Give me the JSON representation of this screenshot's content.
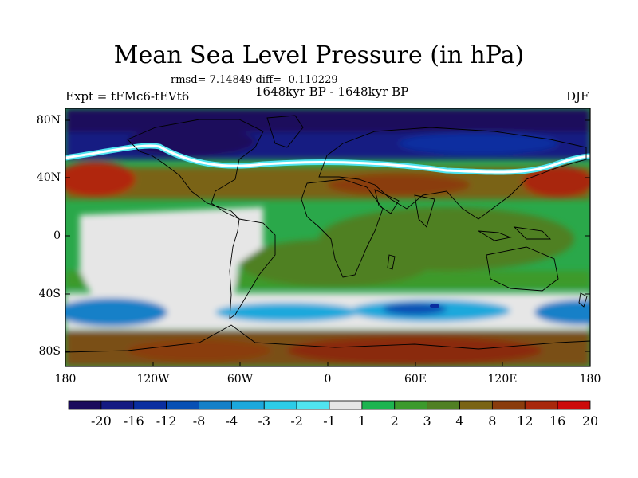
{
  "title": "Mean Sea Level Pressure (in hPa)",
  "stats": "rmsd= 7.14849 diff= -0.110229",
  "expt": "Expt = tFMc6-tEVt6",
  "period": "1648kyr BP - 1648kyr BP",
  "season": "DJF",
  "lat_labels": [
    "80N",
    "40N",
    "0",
    "40S",
    "80S"
  ],
  "lon_labels": [
    "180",
    "120W",
    "60W",
    "0",
    "60E",
    "120E",
    "180"
  ],
  "colorbar": {
    "labels": [
      "-20",
      "-16",
      "-12",
      "-8",
      "-4",
      "-3",
      "-2",
      "-1",
      "1",
      "2",
      "3",
      "4",
      "8",
      "12",
      "16",
      "20"
    ],
    "colors": [
      "#1a0a5c",
      "#141a82",
      "#0a2ea0",
      "#0850b4",
      "#1480c8",
      "#1ca8dc",
      "#2ccce8",
      "#50e4f0",
      "#e6e6e6",
      "#1cb450",
      "#3c9a2c",
      "#508024",
      "#7a6414",
      "#8a3c0c",
      "#a8280c",
      "#cc0a0a"
    ]
  }
}
